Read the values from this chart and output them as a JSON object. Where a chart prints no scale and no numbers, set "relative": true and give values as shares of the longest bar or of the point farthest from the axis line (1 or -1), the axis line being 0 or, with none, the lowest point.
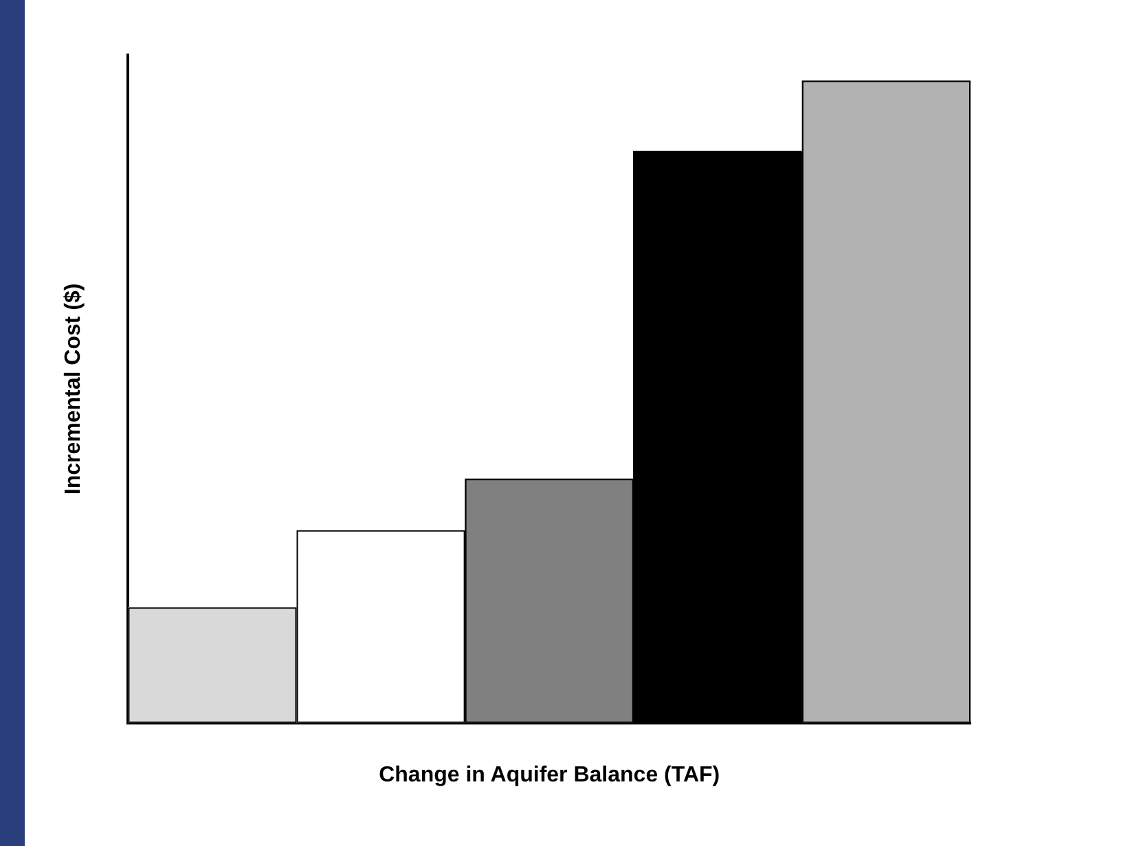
{
  "chart_data": {
    "type": "bar",
    "relative": true,
    "xlabel": "Change in Aquifer Balance (TAF)",
    "ylabel": "Incremental Cost ($)",
    "categories": [
      null,
      null,
      null,
      null,
      null
    ],
    "values": [
      0.18,
      0.3,
      0.38,
      0.89,
      1
    ],
    "colors": [
      "#d9d9d9",
      "#ffffff",
      "#808080",
      "#000000",
      "#b2b2b2"
    ],
    "grid": false,
    "legend": false
  }
}
